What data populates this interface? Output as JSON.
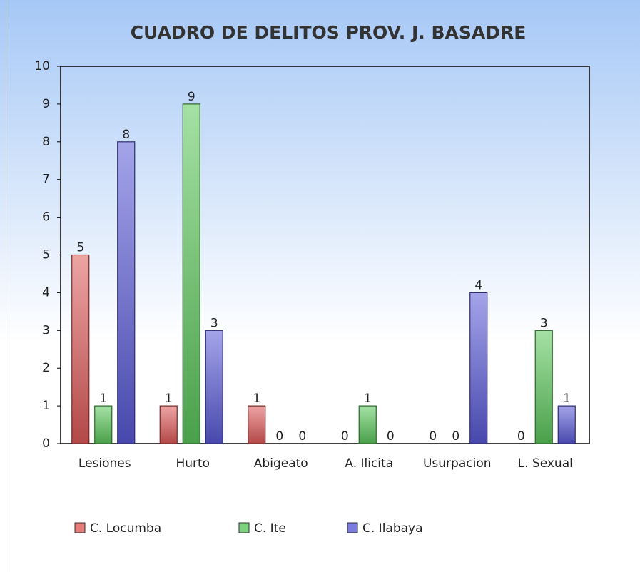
{
  "chart_data": {
    "type": "bar",
    "title": "CUADRO DE DELITOS PROV. J. BASADRE",
    "categories": [
      "Lesiones",
      "Hurto",
      "Abigeato",
      "A. Ilicita",
      "Usurpacion",
      "L. Sexual"
    ],
    "series": [
      {
        "name": "C. Locumba",
        "color": "#e05a5a",
        "values": [
          5,
          1,
          1,
          0,
          0,
          0
        ]
      },
      {
        "name": "C. Ite",
        "color": "#5cc85c",
        "values": [
          1,
          9,
          0,
          1,
          0,
          3
        ]
      },
      {
        "name": "C. Ilabaya",
        "color": "#5a5ad8",
        "values": [
          8,
          3,
          0,
          0,
          4,
          1
        ]
      }
    ],
    "ylim": [
      0,
      10
    ],
    "yticks": [
      0,
      1,
      2,
      3,
      4,
      5,
      6,
      7,
      8,
      9,
      10
    ],
    "grid": false,
    "legend": "bottom"
  }
}
